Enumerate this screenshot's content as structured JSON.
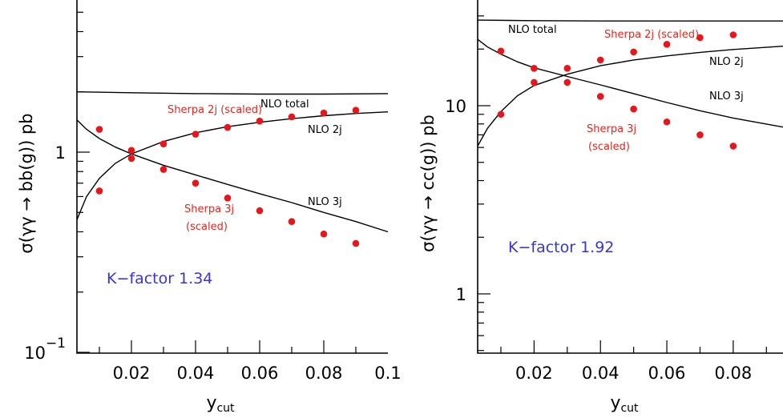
{
  "chart_data": [
    {
      "type": "line",
      "xlabel": "y",
      "xlabel_sub": "cut",
      "ylabel": "σ(γγ → bb(g)) pb",
      "xlim": [
        0.003,
        0.1
      ],
      "ylim": [
        0.1,
        5.0
      ],
      "yscale": "log",
      "xticks": [
        0.02,
        0.04,
        0.06,
        0.08,
        0.1
      ],
      "xtick_labels": [
        "0.02",
        "0.04",
        "0.06",
        "0.08",
        "0.1"
      ],
      "yticks": [
        0.1,
        1
      ],
      "ytick_labels": [
        {
          "base": "10",
          "exp": "−1"
        },
        {
          "base": "1",
          "exp": ""
        }
      ],
      "annotation": "K−factor 1.34",
      "series": [
        {
          "name": "NLO total",
          "style": "line",
          "x": [
            0.003,
            0.02,
            0.04,
            0.06,
            0.08,
            0.1
          ],
          "y": [
            2.0,
            1.98,
            1.96,
            1.95,
            1.95,
            1.96
          ]
        },
        {
          "name": "NLO 2j",
          "style": "line",
          "x": [
            0.003,
            0.006,
            0.01,
            0.015,
            0.02,
            0.03,
            0.04,
            0.05,
            0.06,
            0.07,
            0.08,
            0.09,
            0.1
          ],
          "y": [
            0.46,
            0.6,
            0.74,
            0.88,
            0.98,
            1.13,
            1.25,
            1.34,
            1.41,
            1.47,
            1.52,
            1.56,
            1.59
          ]
        },
        {
          "name": "NLO 3j",
          "style": "line",
          "x": [
            0.003,
            0.006,
            0.01,
            0.015,
            0.02,
            0.03,
            0.04,
            0.05,
            0.06,
            0.07,
            0.08,
            0.09,
            0.1
          ],
          "y": [
            1.45,
            1.3,
            1.17,
            1.06,
            0.98,
            0.86,
            0.77,
            0.69,
            0.62,
            0.56,
            0.5,
            0.45,
            0.4
          ]
        },
        {
          "name": "Sherpa 2j (scaled)",
          "style": "points",
          "x": [
            0.01,
            0.02,
            0.03,
            0.04,
            0.05,
            0.06,
            0.07,
            0.08,
            0.09
          ],
          "y": [
            0.64,
            0.93,
            1.1,
            1.23,
            1.33,
            1.43,
            1.5,
            1.57,
            1.62
          ]
        },
        {
          "name": "Sherpa 3j (scaled)",
          "style": "points",
          "x": [
            0.01,
            0.02,
            0.03,
            0.04,
            0.05,
            0.06,
            0.07,
            0.08,
            0.09
          ],
          "y": [
            1.3,
            1.02,
            0.82,
            0.7,
            0.59,
            0.51,
            0.45,
            0.39,
            0.35
          ]
        }
      ]
    },
    {
      "type": "line",
      "xlabel": "y",
      "xlabel_sub": "cut",
      "ylabel": "σ(γγ → cc(g)) pb",
      "xlim": [
        0.003,
        0.095
      ],
      "ylim": [
        0.5,
        30.0
      ],
      "yscale": "log",
      "xticks": [
        0.02,
        0.04,
        0.06,
        0.08
      ],
      "xtick_labels": [
        "0.02",
        "0.04",
        "0.06",
        "0.08"
      ],
      "yticks": [
        1,
        10
      ],
      "ytick_labels": [
        {
          "base": "1",
          "exp": ""
        },
        {
          "base": "10",
          "exp": ""
        }
      ],
      "annotation": "K−factor 1.92",
      "series": [
        {
          "name": "NLO total",
          "style": "line",
          "x": [
            0.003,
            0.02,
            0.04,
            0.06,
            0.08,
            0.095
          ],
          "y": [
            28.5,
            28.3,
            28.2,
            28.2,
            28.2,
            28.2
          ]
        },
        {
          "name": "NLO 2j",
          "style": "line",
          "x": [
            0.003,
            0.006,
            0.01,
            0.015,
            0.02,
            0.03,
            0.04,
            0.05,
            0.06,
            0.07,
            0.08,
            0.095
          ],
          "y": [
            6.1,
            7.6,
            9.3,
            11.3,
            12.8,
            14.7,
            16.3,
            17.5,
            18.4,
            19.2,
            19.9,
            20.7
          ]
        },
        {
          "name": "NLO 3j",
          "style": "line",
          "x": [
            0.003,
            0.006,
            0.01,
            0.015,
            0.02,
            0.03,
            0.04,
            0.05,
            0.06,
            0.07,
            0.08,
            0.095
          ],
          "y": [
            22.5,
            20.5,
            18.8,
            17.1,
            15.9,
            14.3,
            12.9,
            11.6,
            10.4,
            9.4,
            8.6,
            7.7
          ]
        },
        {
          "name": "Sherpa 2j (scaled)",
          "style": "points",
          "x": [
            0.01,
            0.02,
            0.03,
            0.04,
            0.05,
            0.06,
            0.07,
            0.08
          ],
          "y": [
            9.0,
            13.3,
            13.3,
            17.5,
            19.3,
            21.2,
            23.0,
            23.8
          ]
        },
        {
          "name": "Sherpa 3j (scaled)",
          "style": "points",
          "x": [
            0.01,
            0.02,
            0.03,
            0.04,
            0.05,
            0.06,
            0.07,
            0.08
          ],
          "y": [
            19.5,
            15.8,
            15.8,
            11.2,
            9.6,
            8.2,
            7.0,
            6.1
          ]
        }
      ]
    }
  ],
  "labels": {
    "left": {
      "nlo_total": "NLO total",
      "nlo_2j": "NLO 2j",
      "nlo_3j": "NLO 3j",
      "sherpa_2j": "Sherpa 2j (scaled)",
      "sherpa_3j_line1": "Sherpa 3j",
      "sherpa_3j_line2": "(scaled)"
    },
    "right": {
      "nlo_total": "NLO total",
      "nlo_2j": "NLO 2j",
      "nlo_3j": "NLO 3j",
      "sherpa_2j": "Sherpa 2j (scaled)",
      "sherpa_3j_line1": "Sherpa 3j",
      "sherpa_3j_line2": "(scaled)"
    }
  },
  "colors": {
    "sherpa": "#e8161a",
    "kfactor": "#3535e0",
    "nlo": "#000000"
  }
}
